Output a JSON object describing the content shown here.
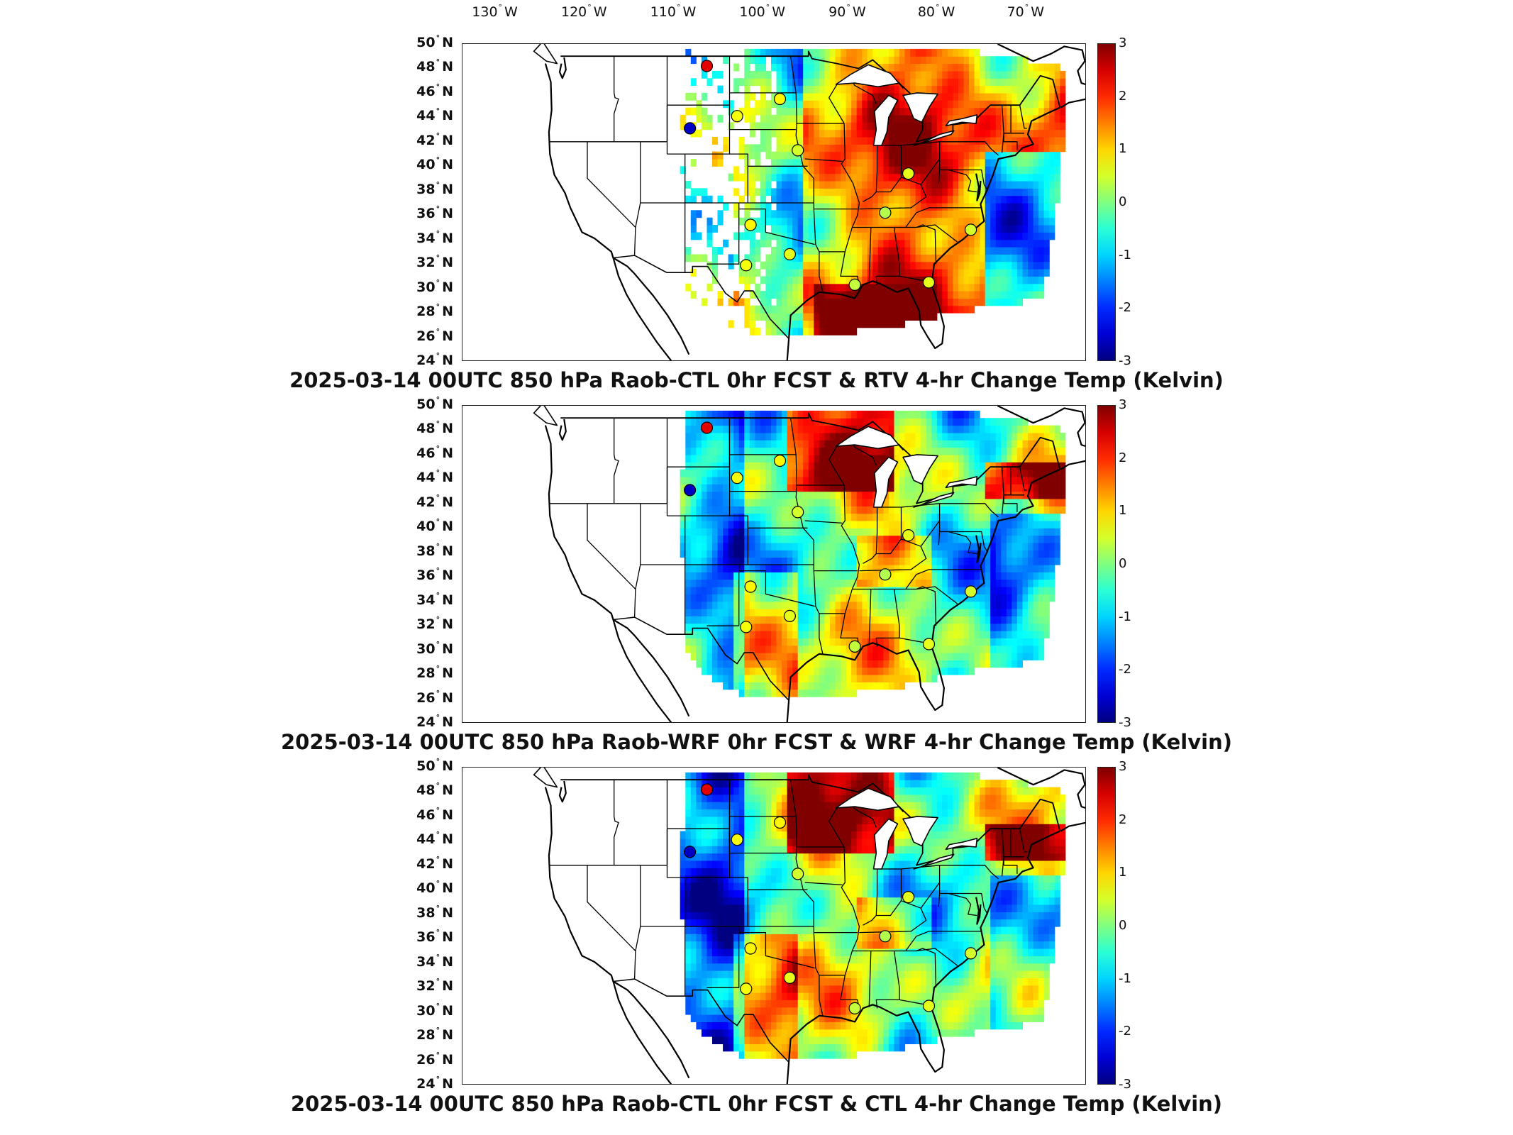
{
  "longitude_labels": [
    {
      "deg": "130",
      "hem": "W"
    },
    {
      "deg": "120",
      "hem": "W"
    },
    {
      "deg": "110",
      "hem": "W"
    },
    {
      "deg": "100",
      "hem": "W"
    },
    {
      "deg": "90",
      "hem": "W"
    },
    {
      "deg": "80",
      "hem": "W"
    },
    {
      "deg": "70",
      "hem": "W"
    }
  ],
  "latitude_labels": [
    {
      "deg": "50",
      "hem": "N"
    },
    {
      "deg": "48",
      "hem": "N"
    },
    {
      "deg": "46",
      "hem": "N"
    },
    {
      "deg": "44",
      "hem": "N"
    },
    {
      "deg": "42",
      "hem": "N"
    },
    {
      "deg": "40",
      "hem": "N"
    },
    {
      "deg": "38",
      "hem": "N"
    },
    {
      "deg": "36",
      "hem": "N"
    },
    {
      "deg": "34",
      "hem": "N"
    },
    {
      "deg": "32",
      "hem": "N"
    },
    {
      "deg": "30",
      "hem": "N"
    },
    {
      "deg": "28",
      "hem": "N"
    },
    {
      "deg": "26",
      "hem": "N"
    },
    {
      "deg": "24",
      "hem": "N"
    }
  ],
  "colorbar": {
    "ticks": [
      "3",
      "2",
      "1",
      "0",
      "-1",
      "-2",
      "-3"
    ],
    "range": [
      -3,
      3
    ],
    "colormap": "jet"
  },
  "panels": [
    {
      "title": "2025-03-14 00UTC 850 hPa Raob-CTL 0hr FCST & RTV 4-hr Change Temp (Kelvin)",
      "field": "sparse-observed"
    },
    {
      "title": "2025-03-14 00UTC 850 hPa Raob-WRF 0hr FCST & WRF 4-hr Change Temp (Kelvin)",
      "field": "model"
    },
    {
      "title": "2025-03-14 00UTC 850 hPa Raob-CTL 0hr FCST & CTL 4-hr Change Temp (Kelvin)",
      "field": "model"
    }
  ],
  "raob_stations": [
    {
      "lon": -106.6,
      "lat": 48.2,
      "value": 2.4
    },
    {
      "lon": -108.5,
      "lat": 43.1,
      "value": -2.6
    },
    {
      "lon": -103.2,
      "lat": 44.1,
      "value": 0.7
    },
    {
      "lon": -98.4,
      "lat": 45.5,
      "value": 0.8
    },
    {
      "lon": -96.4,
      "lat": 41.3,
      "value": 0.5
    },
    {
      "lon": -101.7,
      "lat": 35.2,
      "value": 0.8
    },
    {
      "lon": -102.2,
      "lat": 31.9,
      "value": 0.7
    },
    {
      "lon": -97.3,
      "lat": 32.8,
      "value": 0.6
    },
    {
      "lon": -86.6,
      "lat": 36.2,
      "value": 0.3
    },
    {
      "lon": -84.0,
      "lat": 39.4,
      "value": 0.6
    },
    {
      "lon": -90.0,
      "lat": 30.3,
      "value": 0.4
    },
    {
      "lon": -81.7,
      "lat": 30.5,
      "value": 0.6
    },
    {
      "lon": -77.0,
      "lat": 34.8,
      "value": 0.5
    }
  ]
}
